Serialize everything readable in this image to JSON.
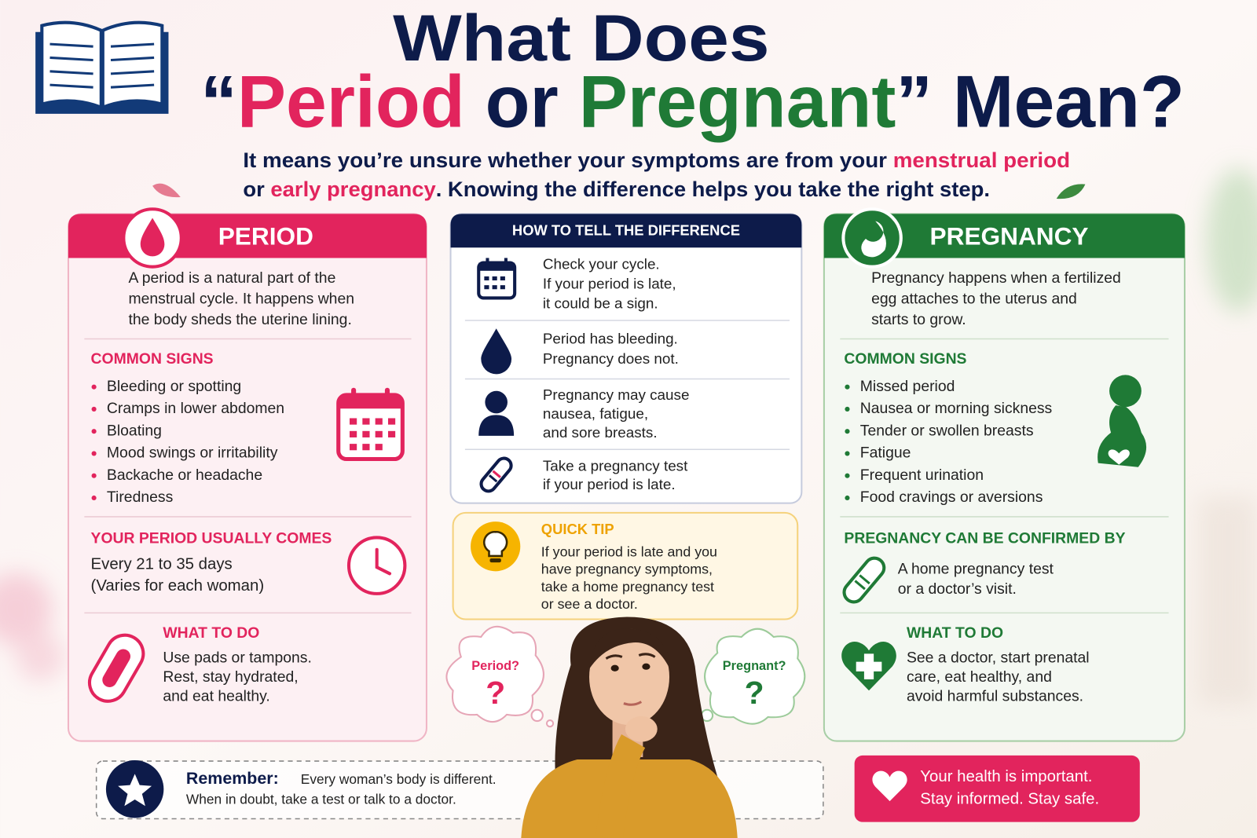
{
  "header": {
    "title_line1": "What Does",
    "title_quote_open": "“",
    "title_period": "Period",
    "title_or": "or",
    "title_pregnant": "Pregnant",
    "title_quote_close": "”",
    "title_mean": "Mean?",
    "subtitle_line1_start": "It means you’re unsure whether your symptoms are from your",
    "subtitle_line1_highlight": "menstrual period",
    "subtitle_line2_start": "or",
    "subtitle_line2_highlight": "early pregnancy",
    "subtitle_line2_end": ". Knowing the difference helps you take the right step."
  },
  "period": {
    "title": "PERIOD",
    "description": [
      "A period is a natural part of the",
      "menstrual cycle. It happens when",
      "the body sheds the uterine lining."
    ],
    "common_signs_heading": "COMMON SIGNS",
    "common_signs": [
      "Bleeding or spotting",
      "Cramps in lower abdomen",
      "Bloating",
      "Mood swings or irritability",
      "Backache or headache",
      "Tiredness"
    ],
    "usually_comes_heading": "YOUR PERIOD USUALLY COMES",
    "usually_comes": [
      "Every 21 to 35 days",
      "(Varies for each woman)"
    ],
    "what_to_do_heading": "WHAT TO DO",
    "what_to_do": [
      "Use pads or tampons.",
      "Rest, stay hydrated,",
      "and eat healthy."
    ]
  },
  "difference": {
    "title": "HOW TO TELL THE DIFFERENCE",
    "rows": [
      [
        "Check your cycle.",
        "If your period is late,",
        "it could be a sign."
      ],
      [
        "Period has bleeding.",
        "Pregnancy does not."
      ],
      [
        "Pregnancy may cause",
        "nausea, fatigue,",
        "and sore breasts."
      ],
      [
        "Take a pregnancy test",
        "if your period is late."
      ]
    ]
  },
  "quick_tip": {
    "title": "QUICK TIP",
    "text": [
      "If your period is late and you",
      "have pregnancy symptoms,",
      "take a home pregnancy test",
      "or see a doctor."
    ]
  },
  "thought_bubbles": {
    "period": "Period?",
    "period_mark": "?",
    "pregnant": "Pregnant?",
    "pregnant_mark": "?"
  },
  "pregnancy": {
    "title": "PREGNANCY",
    "description": [
      "Pregnancy happens when a fertilized",
      "egg attaches to the uterus and",
      "starts to grow."
    ],
    "common_signs_heading": "COMMON SIGNS",
    "common_signs": [
      "Missed period",
      "Nausea or morning sickness",
      "Tender or swollen breasts",
      "Fatigue",
      "Frequent urination",
      "Food cravings or aversions"
    ],
    "confirmed_by_heading": "PREGNANCY CAN BE CONFIRMED BY",
    "confirmed_by": [
      "A home pregnancy test",
      "or a doctor’s visit."
    ],
    "what_to_do_heading": "WHAT TO DO",
    "what_to_do": [
      "See a doctor, start prenatal",
      "care, eat healthy, and",
      "avoid harmful substances."
    ]
  },
  "footer": {
    "remember_label": "Remember:",
    "remember_text": "Every woman’s body is different.",
    "remember_line2": "When in doubt, take a test or talk to a doctor.",
    "health": [
      "Your health is important.",
      "Stay informed. Stay safe."
    ]
  }
}
